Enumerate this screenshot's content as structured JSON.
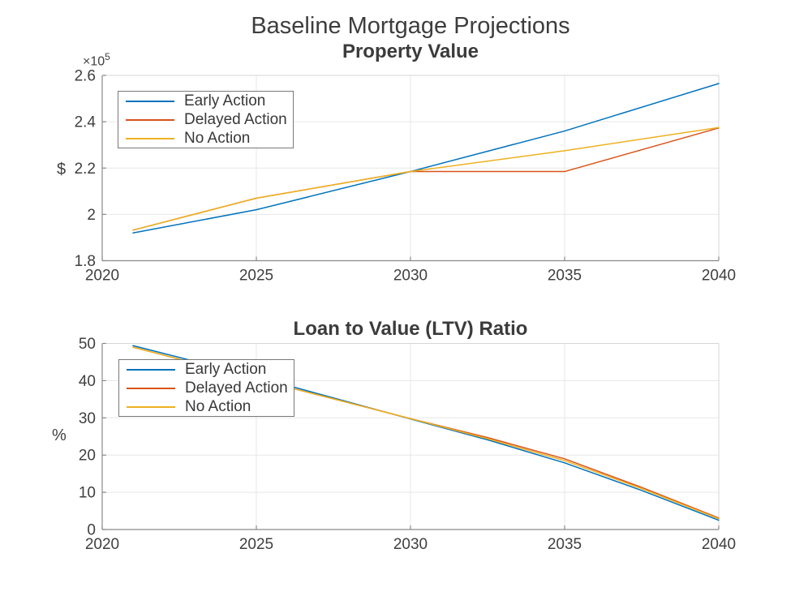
{
  "figure": {
    "title": "Baseline Mortgage Projections",
    "background": "#ffffff"
  },
  "palette": {
    "axis_spine": "#8a8a8a",
    "box_light": "#d6d6d6",
    "grid": "#e7e7e7",
    "tick_text": "#3f3f3f",
    "blue": "#0072BD",
    "orange": "#D95319",
    "yellow": "#EDB120"
  },
  "chart_data": [
    {
      "type": "line",
      "title": "Property Value",
      "ylabel": "$",
      "exponent": {
        "base": "×10",
        "power": "5"
      },
      "xlim": [
        2020,
        2040
      ],
      "ylim": [
        1.8,
        2.6
      ],
      "grid": true,
      "legend_position": "top-left",
      "x_tick_values": [
        2020,
        2025,
        2030,
        2035,
        2040
      ],
      "x_tick_labels": [
        "2020",
        "2025",
        "2030",
        "2035",
        "2040"
      ],
      "y_tick_values": [
        1.8,
        2,
        2.2,
        2.4,
        2.6
      ],
      "y_tick_labels": [
        "1.8",
        "2",
        "2.2",
        "2.4",
        "2.6"
      ],
      "y_unit_note": "values are in units of 1e5 dollars",
      "series": [
        {
          "name": "Early Action",
          "color": "#0072BD",
          "x": [
            2021,
            2025,
            2030,
            2035,
            2040
          ],
          "y": [
            1.92,
            2.02,
            2.185,
            2.36,
            2.565
          ]
        },
        {
          "name": "Delayed Action",
          "color": "#D95319",
          "x": [
            2021,
            2025,
            2030,
            2035,
            2040
          ],
          "y": [
            1.932,
            2.07,
            2.185,
            2.185,
            2.373
          ]
        },
        {
          "name": "No Action",
          "color": "#EDB120",
          "x": [
            2021,
            2025,
            2030,
            2035,
            2040
          ],
          "y": [
            1.932,
            2.07,
            2.185,
            2.275,
            2.375
          ]
        }
      ]
    },
    {
      "type": "line",
      "title": "Loan to Value (LTV) Ratio",
      "ylabel": "%",
      "exponent": null,
      "xlim": [
        2020,
        2040
      ],
      "ylim": [
        0,
        50
      ],
      "grid": true,
      "legend_position": "top-left",
      "x_tick_values": [
        2020,
        2025,
        2030,
        2035,
        2040
      ],
      "x_tick_labels": [
        "2020",
        "2025",
        "2030",
        "2035",
        "2040"
      ],
      "y_tick_values": [
        0,
        10,
        20,
        30,
        40,
        50
      ],
      "y_tick_labels": [
        "0",
        "10",
        "20",
        "30",
        "40",
        "50"
      ],
      "series": [
        {
          "name": "Early Action",
          "color": "#0072BD",
          "x": [
            2021,
            2025,
            2030,
            2032.5,
            2035,
            2037.5,
            2040
          ],
          "y": [
            49.4,
            41.0,
            29.7,
            24.1,
            17.9,
            10.5,
            2.5
          ]
        },
        {
          "name": "Delayed Action",
          "color": "#D95319",
          "x": [
            2021,
            2025,
            2030,
            2032.5,
            2035,
            2037.5,
            2040
          ],
          "y": [
            49.0,
            40.4,
            29.8,
            24.7,
            19.0,
            11.3,
            3.1
          ]
        },
        {
          "name": "No Action",
          "color": "#EDB120",
          "x": [
            2021,
            2025,
            2030,
            2032.5,
            2035,
            2037.5,
            2040
          ],
          "y": [
            49.0,
            40.4,
            29.8,
            24.4,
            18.5,
            11.0,
            2.9
          ]
        }
      ]
    }
  ]
}
